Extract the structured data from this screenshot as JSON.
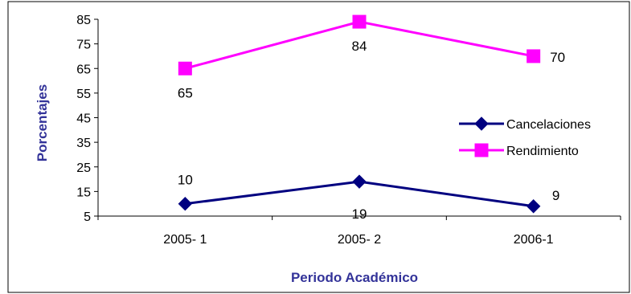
{
  "chart_data": {
    "type": "line",
    "categories": [
      "2005- 1",
      "2005- 2",
      "2006-1"
    ],
    "series": [
      {
        "name": "Cancelaciones",
        "values": [
          10,
          19,
          9
        ],
        "labels": [
          "10",
          "19",
          "9"
        ],
        "color": "#000080",
        "marker": "diamond"
      },
      {
        "name": "Rendimiento",
        "values": [
          65,
          84,
          70
        ],
        "labels": [
          "65",
          "84",
          "70"
        ],
        "color": "#FF00FF",
        "marker": "square"
      }
    ],
    "xlabel": "Periodo Académico",
    "ylabel": "Porcentajes",
    "ylim": [
      5,
      85
    ],
    "yticks": [
      "85",
      "75",
      "65",
      "55",
      "45",
      "35",
      "25",
      "15",
      "5"
    ],
    "grid": false,
    "legend_position": "right"
  }
}
